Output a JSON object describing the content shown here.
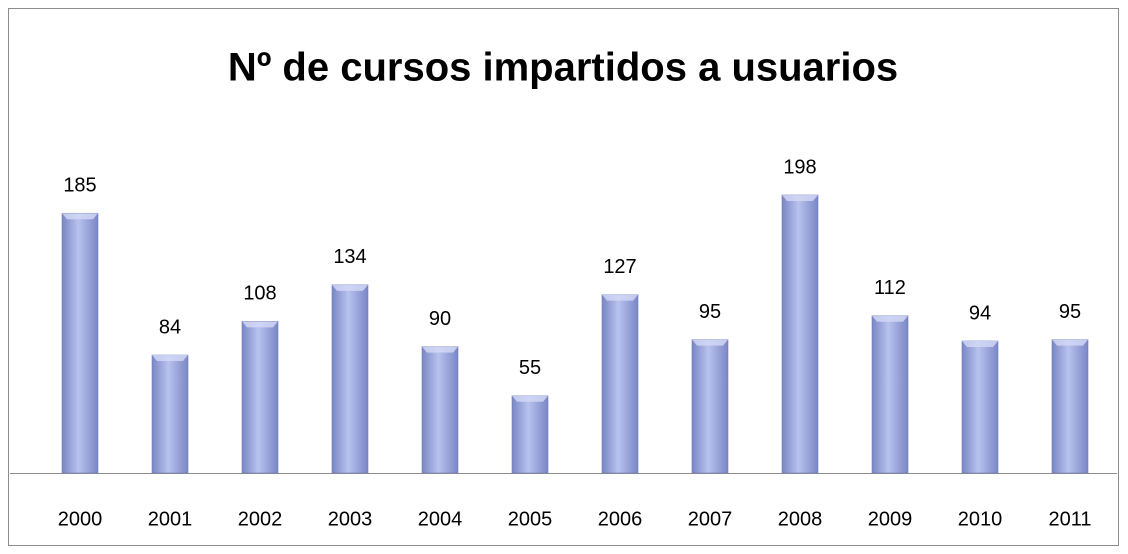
{
  "chart_data": {
    "type": "bar",
    "title": "Nº de cursos impartidos a usuarios",
    "categories": [
      "2000",
      "2001",
      "2002",
      "2003",
      "2004",
      "2005",
      "2006",
      "2007",
      "2008",
      "2009",
      "2010",
      "2011"
    ],
    "values": [
      185,
      84,
      108,
      134,
      90,
      55,
      127,
      95,
      198,
      112,
      94,
      95
    ],
    "color": "#8e9bd8"
  }
}
